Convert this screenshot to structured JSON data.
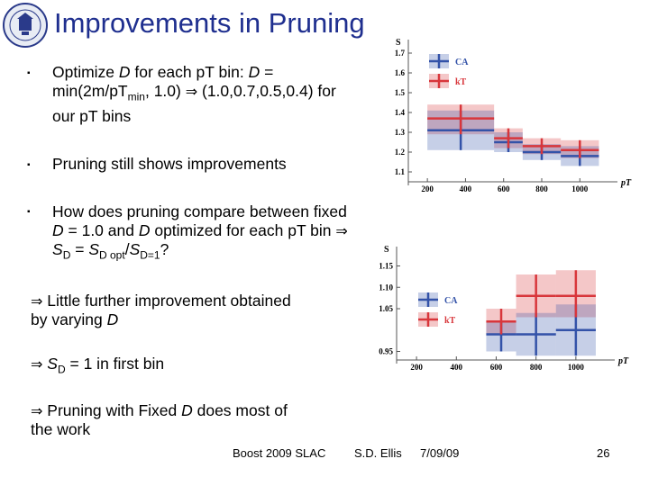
{
  "slide": {
    "title": "Improvements in Pruning",
    "bullets": [
      {
        "parts": [
          "Optimize ",
          "D",
          " for each p",
          "T",
          " bin: ",
          "D",
          " =",
          "\n",
          "min(2m/pT",
          "min",
          ", 1.0) ",
          "⇒",
          " (1.0,0.7,0.5,0.4) for",
          "\n",
          "our pT bins"
        ]
      },
      {
        "parts": [
          "Pruning still shows improvements"
        ]
      },
      {
        "parts": [
          "How does pruning compare between fixed",
          "\n",
          "D",
          " = 1.0 and ",
          "D",
          " optimized for each p",
          "T",
          " bin ",
          "⇒",
          "\n",
          "S",
          "D",
          " = ",
          "S",
          "D opt",
          "/",
          "S",
          "D=1",
          "?"
        ]
      }
    ],
    "implications": [
      {
        "arrow": "⇒",
        "text1": "Little further improvement obtained",
        "text2a": "by varying ",
        "text2b": "D"
      },
      {
        "arrow": "⇒",
        "s": "S",
        "sub": "D",
        "rest": " = 1 in first bin"
      },
      {
        "arrow": "⇒",
        "text1": "Pruning with Fixed ",
        "d": "D",
        "text1b": " does most of",
        "text2": "the work"
      }
    ],
    "footer": {
      "event": "Boost 2009  SLAC",
      "author": "S.D. Ellis",
      "date": "7/09/09",
      "page": "26"
    }
  },
  "colors": {
    "title": "#1f2f8f",
    "CA": "#3352a8",
    "kT": "#d8363b"
  },
  "chart_data": [
    {
      "type": "scatter",
      "ylabel": "S",
      "xlabel": "pT",
      "x_ticks": [
        "200",
        "400",
        "600",
        "800",
        "1000"
      ],
      "y_ticks": [
        "1.1",
        "1.2",
        "1.3",
        "1.4",
        "1.5",
        "1.6",
        "1.7"
      ],
      "xlim": [
        100,
        1150
      ],
      "ylim": [
        1.05,
        1.75
      ],
      "legend": "top-right",
      "series": [
        {
          "name": "CA",
          "points": [
            {
              "xlo": 200,
              "xhi": 550,
              "y": 1.31,
              "ylo": 1.21,
              "yhi": 1.41
            },
            {
              "xlo": 550,
              "xhi": 700,
              "y": 1.25,
              "ylo": 1.2,
              "yhi": 1.3
            },
            {
              "xlo": 700,
              "xhi": 900,
              "y": 1.2,
              "ylo": 1.16,
              "yhi": 1.24
            },
            {
              "xlo": 900,
              "xhi": 1100,
              "y": 1.18,
              "ylo": 1.13,
              "yhi": 1.23
            }
          ]
        },
        {
          "name": "kT",
          "points": [
            {
              "xlo": 200,
              "xhi": 550,
              "y": 1.37,
              "ylo": 1.29,
              "yhi": 1.44
            },
            {
              "xlo": 550,
              "xhi": 700,
              "y": 1.27,
              "ylo": 1.22,
              "yhi": 1.32
            },
            {
              "xlo": 700,
              "xhi": 900,
              "y": 1.23,
              "ylo": 1.19,
              "yhi": 1.27
            },
            {
              "xlo": 900,
              "xhi": 1100,
              "y": 1.21,
              "ylo": 1.17,
              "yhi": 1.26
            }
          ]
        }
      ]
    },
    {
      "type": "scatter",
      "ylabel": "S",
      "xlabel": "pT",
      "x_ticks": [
        "200",
        "400",
        "600",
        "800",
        "1000"
      ],
      "y_ticks": [
        "0.95",
        "1.05",
        "1.10",
        "1.15"
      ],
      "xlim": [
        100,
        1150
      ],
      "ylim": [
        0.93,
        1.17
      ],
      "legend": "top-left",
      "series": [
        {
          "name": "CA",
          "points": [
            {
              "xlo": 550,
              "xhi": 700,
              "y": 0.99,
              "ylo": 0.95,
              "yhi": 1.02
            },
            {
              "xlo": 700,
              "xhi": 900,
              "y": 0.99,
              "ylo": 0.94,
              "yhi": 1.04
            },
            {
              "xlo": 900,
              "xhi": 1100,
              "y": 1.0,
              "ylo": 0.94,
              "yhi": 1.06
            }
          ]
        },
        {
          "name": "kT",
          "points": [
            {
              "xlo": 550,
              "xhi": 700,
              "y": 1.02,
              "ylo": 0.99,
              "yhi": 1.05
            },
            {
              "xlo": 700,
              "xhi": 900,
              "y": 1.08,
              "ylo": 1.03,
              "yhi": 1.13
            },
            {
              "xlo": 900,
              "xhi": 1100,
              "y": 1.08,
              "ylo": 1.03,
              "yhi": 1.14
            }
          ]
        }
      ]
    }
  ]
}
